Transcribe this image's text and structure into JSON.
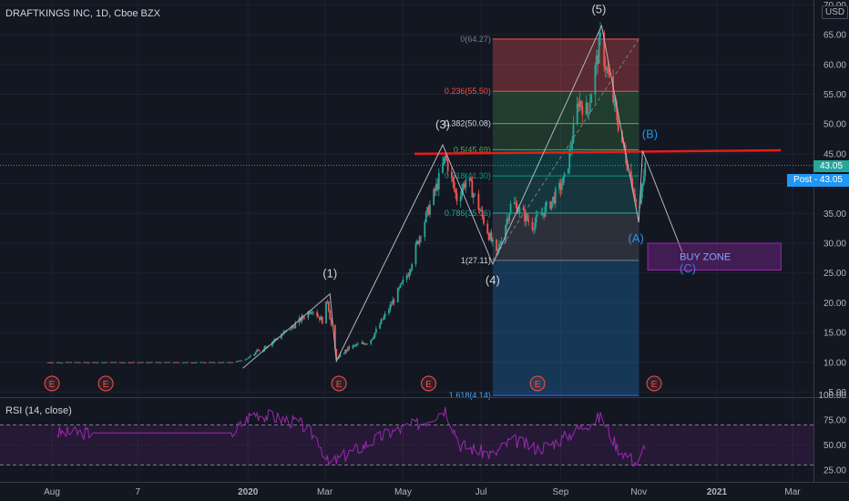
{
  "header": {
    "title": "DRAFTKINGS INC, 1D, Cboe BZX",
    "currency": "USD"
  },
  "rsi_header": {
    "title": "RSI (14, close)"
  },
  "price_tags": {
    "last": "43.05",
    "post": "Post - 43.05"
  },
  "colors": {
    "background": "#131722",
    "up": "#26a69a",
    "down": "#ef5350",
    "resistance": "#e51c1c",
    "buy_zone": "#9c27b0",
    "rsi": "#9c27b0",
    "elliott": "#b2b5be"
  },
  "chart_data": [
    {
      "type": "candlestick",
      "title": "DRAFTKINGS INC, 1D, Cboe BZX",
      "x_ticks": [
        "Aug",
        "7",
        "2020",
        "Mar",
        "May",
        "Jul",
        "Sep",
        "Nov",
        "2021",
        "Mar"
      ],
      "y_ticks": [
        "70.00",
        "65.00",
        "60.00",
        "55.00",
        "50.00",
        "45.00",
        "40.00",
        "35.00",
        "30.00",
        "25.00",
        "20.00",
        "15.00",
        "10.00",
        "5.00"
      ],
      "ylim": [
        5,
        70
      ],
      "grid": true,
      "price_path": [
        {
          "date": "2019-07-29",
          "price": 10.0
        },
        {
          "date": "2019-12-20",
          "price": 10.0
        },
        {
          "date": "2019-12-31",
          "price": 10.6
        },
        {
          "date": "2020-01-20",
          "price": 13.5
        },
        {
          "date": "2020-02-05",
          "price": 16.0
        },
        {
          "date": "2020-02-20",
          "price": 19.0
        },
        {
          "date": "2020-02-28",
          "price": 17.0
        },
        {
          "date": "2020-03-03",
          "price": 20.5
        },
        {
          "date": "2020-03-10",
          "price": 10.5
        },
        {
          "date": "2020-03-20",
          "price": 12.5
        },
        {
          "date": "2020-04-05",
          "price": 13.5
        },
        {
          "date": "2020-04-20",
          "price": 19.0
        },
        {
          "date": "2020-05-05",
          "price": 25.0
        },
        {
          "date": "2020-05-15",
          "price": 32.0
        },
        {
          "date": "2020-05-28",
          "price": 40.0
        },
        {
          "date": "2020-06-03",
          "price": 44.5
        },
        {
          "date": "2020-06-12",
          "price": 37.5
        },
        {
          "date": "2020-06-20",
          "price": 41.0
        },
        {
          "date": "2020-07-01",
          "price": 35.0
        },
        {
          "date": "2020-07-13",
          "price": 28.0
        },
        {
          "date": "2020-07-25",
          "price": 37.0
        },
        {
          "date": "2020-08-10",
          "price": 33.0
        },
        {
          "date": "2020-08-25",
          "price": 37.0
        },
        {
          "date": "2020-09-05",
          "price": 41.0
        },
        {
          "date": "2020-09-15",
          "price": 54.0
        },
        {
          "date": "2020-09-22",
          "price": 52.0
        },
        {
          "date": "2020-10-02",
          "price": 64.0
        },
        {
          "date": "2020-10-08",
          "price": 58.0
        },
        {
          "date": "2020-10-20",
          "price": 46.0
        },
        {
          "date": "2020-10-27",
          "price": 40.0
        },
        {
          "date": "2020-11-01",
          "price": 35.0
        },
        {
          "date": "2020-11-03",
          "price": 38.0
        },
        {
          "date": "2020-11-06",
          "price": 43.05
        }
      ],
      "last_price": 43.05,
      "resistance_line": {
        "from": {
          "date": "2020-05-10",
          "price": 45.0
        },
        "to": {
          "date": "2021-02-20",
          "price": 45.6
        }
      },
      "fibonacci": [
        {
          "label": "0(64.27)",
          "level": 0,
          "price": 64.27
        },
        {
          "label": "0.236(55.50)",
          "level": 0.236,
          "price": 55.5
        },
        {
          "label": "0.382(50.08)",
          "level": 0.382,
          "price": 50.08
        },
        {
          "label": "0.5(45.69)",
          "level": 0.5,
          "price": 45.69
        },
        {
          "label": "0.618(41.30)",
          "level": 0.618,
          "price": 41.3
        },
        {
          "label": "0.786(35.06)",
          "level": 0.786,
          "price": 35.06
        },
        {
          "label": "1(27.11)",
          "level": 1,
          "price": 27.11
        },
        {
          "label": "1.618(4.14)",
          "level": 1.618,
          "price": 4.14
        }
      ],
      "elliott_waves": [
        {
          "label": "(1)",
          "date": "2020-03-05",
          "price": 21.5
        },
        {
          "label": "(3)",
          "date": "2020-06-01",
          "price": 46.5
        },
        {
          "label": "(4)",
          "date": "2020-07-10",
          "price": 26.5
        },
        {
          "label": "(5)",
          "date": "2020-10-03",
          "price": 66.5
        },
        {
          "label": "(A)",
          "date": "2020-11-01",
          "price": 33.5
        },
        {
          "label": "(B)",
          "date": "2020-11-04",
          "price": 45.5
        },
        {
          "label": "(C)",
          "date": "2020-12-05",
          "price": 28.5
        }
      ],
      "wave_path": [
        {
          "date": "2019-12-28",
          "price": 9.0
        },
        {
          "date": "2020-03-05",
          "price": 21.5
        },
        {
          "date": "2020-03-10",
          "price": 10.2
        },
        {
          "date": "2020-06-01",
          "price": 46.5
        },
        {
          "date": "2020-07-10",
          "price": 26.5
        },
        {
          "date": "2020-10-03",
          "price": 66.5
        },
        {
          "date": "2020-11-01",
          "price": 33.5
        },
        {
          "date": "2020-11-04",
          "price": 45.5
        },
        {
          "date": "2020-12-05",
          "price": 28.5
        }
      ],
      "buy_zone": {
        "label": "BUY ZONE",
        "from_date": "2020-11-08",
        "to_date": "2021-02-20",
        "low": 25.5,
        "high": 30.0
      },
      "earnings_markers": [
        {
          "label": "E",
          "date": "2019-08-01"
        },
        {
          "label": "E",
          "date": "2019-09-12"
        },
        {
          "label": "E",
          "date": "2020-03-12"
        },
        {
          "label": "E",
          "date": "2020-05-21"
        },
        {
          "label": "E",
          "date": "2020-08-14"
        },
        {
          "label": "E",
          "date": "2020-11-13"
        }
      ]
    },
    {
      "type": "line",
      "title": "RSI (14, close)",
      "y_ticks": [
        "100.00",
        "75.00",
        "50.00",
        "25.00"
      ],
      "ylim": [
        25,
        100
      ],
      "bands": [
        30,
        70
      ],
      "series": [
        {
          "points": [
            {
              "date": "2019-08-05",
              "value": 62
            },
            {
              "date": "2019-09-01",
              "value": 62
            },
            {
              "date": "2019-12-20",
              "value": 62
            },
            {
              "date": "2020-01-05",
              "value": 82
            },
            {
              "date": "2020-02-10",
              "value": 72
            },
            {
              "date": "2020-02-25",
              "value": 55
            },
            {
              "date": "2020-03-04",
              "value": 30
            },
            {
              "date": "2020-03-20",
              "value": 42
            },
            {
              "date": "2020-04-20",
              "value": 62
            },
            {
              "date": "2020-05-15",
              "value": 72
            },
            {
              "date": "2020-06-03",
              "value": 86
            },
            {
              "date": "2020-06-15",
              "value": 50
            },
            {
              "date": "2020-07-10",
              "value": 40
            },
            {
              "date": "2020-07-25",
              "value": 55
            },
            {
              "date": "2020-08-15",
              "value": 46
            },
            {
              "date": "2020-09-01",
              "value": 55
            },
            {
              "date": "2020-09-20",
              "value": 70
            },
            {
              "date": "2020-10-03",
              "value": 78
            },
            {
              "date": "2020-10-15",
              "value": 48
            },
            {
              "date": "2020-11-01",
              "value": 30
            },
            {
              "date": "2020-11-06",
              "value": 52
            }
          ]
        }
      ]
    }
  ]
}
